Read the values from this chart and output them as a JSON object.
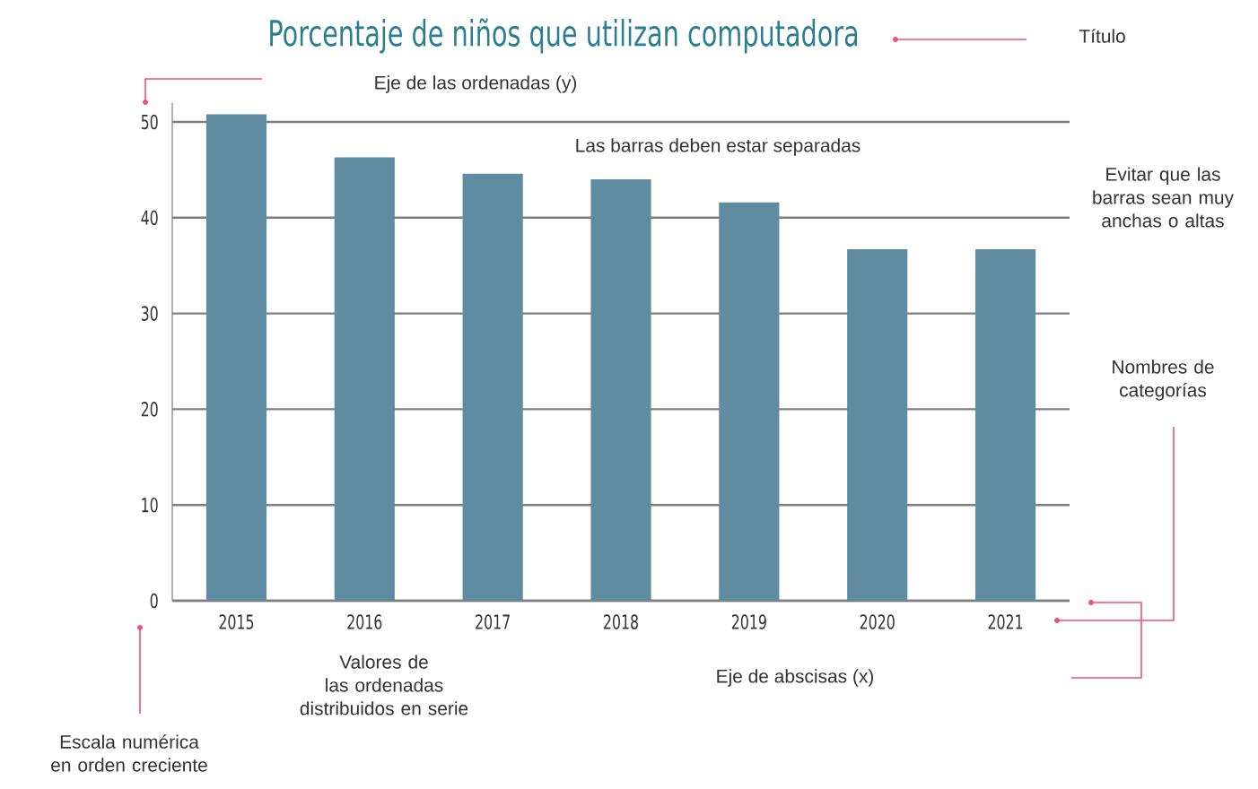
{
  "chart_data": {
    "type": "bar",
    "title": "Porcentaje de niños que utilizan computadora",
    "categories": [
      "2015",
      "2016",
      "2017",
      "2018",
      "2019",
      "2020",
      "2021"
    ],
    "values": [
      50.8,
      46.3,
      44.6,
      44.0,
      41.6,
      36.7,
      36.7
    ],
    "color": "#5f8ca0",
    "ylim": [
      0,
      52
    ],
    "yticks": [
      0,
      10,
      20,
      30,
      40,
      50
    ],
    "grid": "y",
    "annotations": [
      "Título",
      "Eje de las ordenadas (y)",
      "Las barras deben estar separadas",
      "Evitar que las barras sean muy anchas o altas",
      "Nombres de categorías",
      "Valores de las ordenadas distribuidos en serie",
      "Eje de abscisas (x)",
      "Escala numérica en orden creciente"
    ]
  }
}
